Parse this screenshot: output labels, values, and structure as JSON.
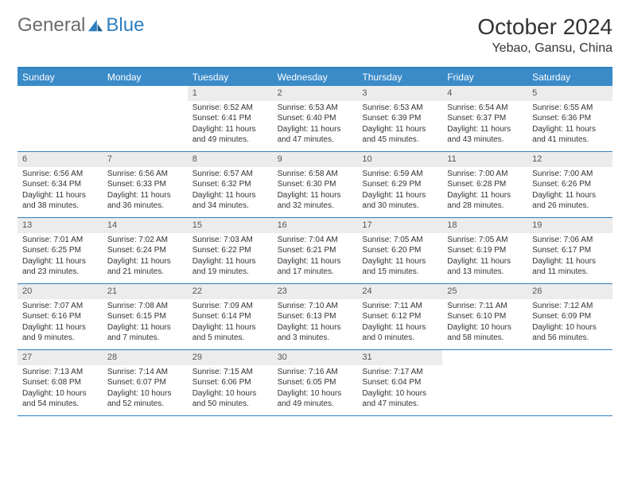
{
  "brand": {
    "part1": "General",
    "part2": "Blue"
  },
  "title": "October 2024",
  "location": "Yebao, Gansu, China",
  "day_header_bg": "#3b8bc9",
  "accent_color": "#2f7fc0",
  "num_bg": "#ececec",
  "days": [
    "Sunday",
    "Monday",
    "Tuesday",
    "Wednesday",
    "Thursday",
    "Friday",
    "Saturday"
  ],
  "weeks": [
    [
      {
        "n": "",
        "sr": "",
        "ss": "",
        "dl": ""
      },
      {
        "n": "",
        "sr": "",
        "ss": "",
        "dl": ""
      },
      {
        "n": "1",
        "sr": "Sunrise: 6:52 AM",
        "ss": "Sunset: 6:41 PM",
        "dl": "Daylight: 11 hours and 49 minutes."
      },
      {
        "n": "2",
        "sr": "Sunrise: 6:53 AM",
        "ss": "Sunset: 6:40 PM",
        "dl": "Daylight: 11 hours and 47 minutes."
      },
      {
        "n": "3",
        "sr": "Sunrise: 6:53 AM",
        "ss": "Sunset: 6:39 PM",
        "dl": "Daylight: 11 hours and 45 minutes."
      },
      {
        "n": "4",
        "sr": "Sunrise: 6:54 AM",
        "ss": "Sunset: 6:37 PM",
        "dl": "Daylight: 11 hours and 43 minutes."
      },
      {
        "n": "5",
        "sr": "Sunrise: 6:55 AM",
        "ss": "Sunset: 6:36 PM",
        "dl": "Daylight: 11 hours and 41 minutes."
      }
    ],
    [
      {
        "n": "6",
        "sr": "Sunrise: 6:56 AM",
        "ss": "Sunset: 6:34 PM",
        "dl": "Daylight: 11 hours and 38 minutes."
      },
      {
        "n": "7",
        "sr": "Sunrise: 6:56 AM",
        "ss": "Sunset: 6:33 PM",
        "dl": "Daylight: 11 hours and 36 minutes."
      },
      {
        "n": "8",
        "sr": "Sunrise: 6:57 AM",
        "ss": "Sunset: 6:32 PM",
        "dl": "Daylight: 11 hours and 34 minutes."
      },
      {
        "n": "9",
        "sr": "Sunrise: 6:58 AM",
        "ss": "Sunset: 6:30 PM",
        "dl": "Daylight: 11 hours and 32 minutes."
      },
      {
        "n": "10",
        "sr": "Sunrise: 6:59 AM",
        "ss": "Sunset: 6:29 PM",
        "dl": "Daylight: 11 hours and 30 minutes."
      },
      {
        "n": "11",
        "sr": "Sunrise: 7:00 AM",
        "ss": "Sunset: 6:28 PM",
        "dl": "Daylight: 11 hours and 28 minutes."
      },
      {
        "n": "12",
        "sr": "Sunrise: 7:00 AM",
        "ss": "Sunset: 6:26 PM",
        "dl": "Daylight: 11 hours and 26 minutes."
      }
    ],
    [
      {
        "n": "13",
        "sr": "Sunrise: 7:01 AM",
        "ss": "Sunset: 6:25 PM",
        "dl": "Daylight: 11 hours and 23 minutes."
      },
      {
        "n": "14",
        "sr": "Sunrise: 7:02 AM",
        "ss": "Sunset: 6:24 PM",
        "dl": "Daylight: 11 hours and 21 minutes."
      },
      {
        "n": "15",
        "sr": "Sunrise: 7:03 AM",
        "ss": "Sunset: 6:22 PM",
        "dl": "Daylight: 11 hours and 19 minutes."
      },
      {
        "n": "16",
        "sr": "Sunrise: 7:04 AM",
        "ss": "Sunset: 6:21 PM",
        "dl": "Daylight: 11 hours and 17 minutes."
      },
      {
        "n": "17",
        "sr": "Sunrise: 7:05 AM",
        "ss": "Sunset: 6:20 PM",
        "dl": "Daylight: 11 hours and 15 minutes."
      },
      {
        "n": "18",
        "sr": "Sunrise: 7:05 AM",
        "ss": "Sunset: 6:19 PM",
        "dl": "Daylight: 11 hours and 13 minutes."
      },
      {
        "n": "19",
        "sr": "Sunrise: 7:06 AM",
        "ss": "Sunset: 6:17 PM",
        "dl": "Daylight: 11 hours and 11 minutes."
      }
    ],
    [
      {
        "n": "20",
        "sr": "Sunrise: 7:07 AM",
        "ss": "Sunset: 6:16 PM",
        "dl": "Daylight: 11 hours and 9 minutes."
      },
      {
        "n": "21",
        "sr": "Sunrise: 7:08 AM",
        "ss": "Sunset: 6:15 PM",
        "dl": "Daylight: 11 hours and 7 minutes."
      },
      {
        "n": "22",
        "sr": "Sunrise: 7:09 AM",
        "ss": "Sunset: 6:14 PM",
        "dl": "Daylight: 11 hours and 5 minutes."
      },
      {
        "n": "23",
        "sr": "Sunrise: 7:10 AM",
        "ss": "Sunset: 6:13 PM",
        "dl": "Daylight: 11 hours and 3 minutes."
      },
      {
        "n": "24",
        "sr": "Sunrise: 7:11 AM",
        "ss": "Sunset: 6:12 PM",
        "dl": "Daylight: 11 hours and 0 minutes."
      },
      {
        "n": "25",
        "sr": "Sunrise: 7:11 AM",
        "ss": "Sunset: 6:10 PM",
        "dl": "Daylight: 10 hours and 58 minutes."
      },
      {
        "n": "26",
        "sr": "Sunrise: 7:12 AM",
        "ss": "Sunset: 6:09 PM",
        "dl": "Daylight: 10 hours and 56 minutes."
      }
    ],
    [
      {
        "n": "27",
        "sr": "Sunrise: 7:13 AM",
        "ss": "Sunset: 6:08 PM",
        "dl": "Daylight: 10 hours and 54 minutes."
      },
      {
        "n": "28",
        "sr": "Sunrise: 7:14 AM",
        "ss": "Sunset: 6:07 PM",
        "dl": "Daylight: 10 hours and 52 minutes."
      },
      {
        "n": "29",
        "sr": "Sunrise: 7:15 AM",
        "ss": "Sunset: 6:06 PM",
        "dl": "Daylight: 10 hours and 50 minutes."
      },
      {
        "n": "30",
        "sr": "Sunrise: 7:16 AM",
        "ss": "Sunset: 6:05 PM",
        "dl": "Daylight: 10 hours and 49 minutes."
      },
      {
        "n": "31",
        "sr": "Sunrise: 7:17 AM",
        "ss": "Sunset: 6:04 PM",
        "dl": "Daylight: 10 hours and 47 minutes."
      },
      {
        "n": "",
        "sr": "",
        "ss": "",
        "dl": ""
      },
      {
        "n": "",
        "sr": "",
        "ss": "",
        "dl": ""
      }
    ]
  ]
}
